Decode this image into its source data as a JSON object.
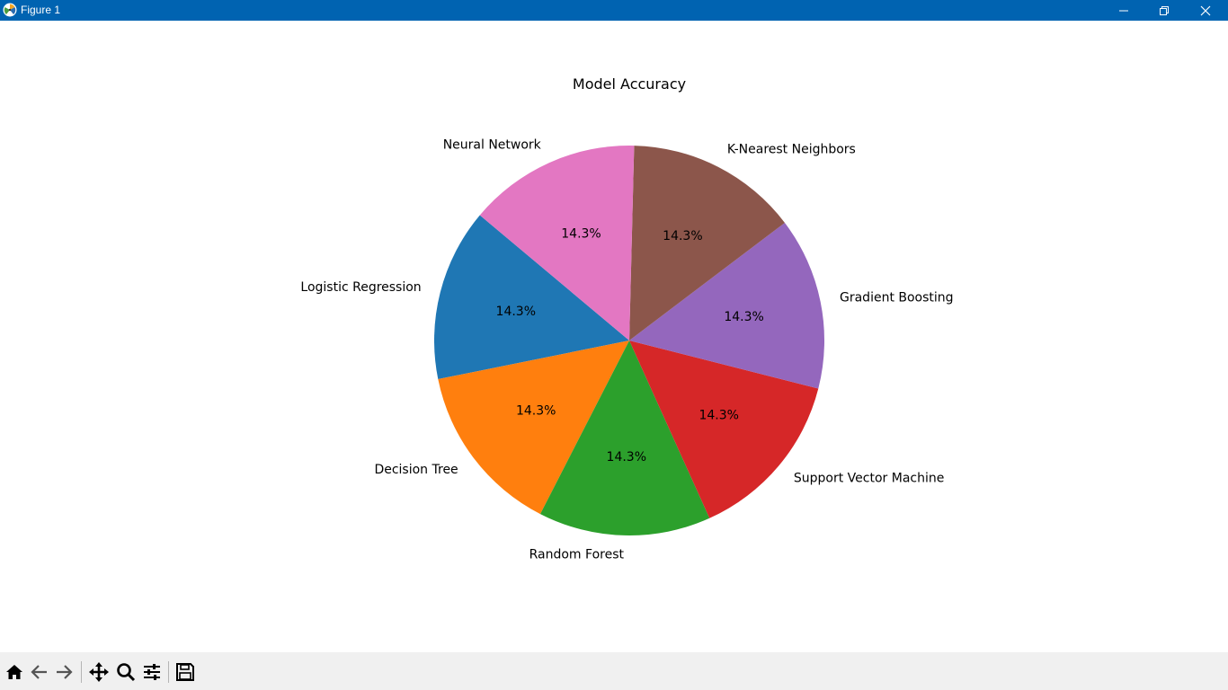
{
  "window": {
    "title": "Figure 1",
    "titlebar_color": "#0063b1"
  },
  "window_controls": [
    {
      "name": "minimize-button",
      "icon": "minimize-icon"
    },
    {
      "name": "restore-button",
      "icon": "restore-icon"
    },
    {
      "name": "close-button",
      "icon": "close-icon"
    }
  ],
  "toolbar": {
    "tools": [
      {
        "name": "home-button",
        "icon": "home-icon"
      },
      {
        "name": "back-button",
        "icon": "back-arrow-icon"
      },
      {
        "name": "forward-button",
        "icon": "forward-arrow-icon"
      },
      {
        "name": "pan-button",
        "icon": "move-icon"
      },
      {
        "name": "zoom-button",
        "icon": "magnifier-icon"
      },
      {
        "name": "configure-subplots-button",
        "icon": "sliders-icon"
      },
      {
        "name": "save-button",
        "icon": "floppy-disk-icon"
      }
    ]
  },
  "chart_data": {
    "type": "pie",
    "title": "Model Accuracy",
    "categories": [
      "Logistic Regression",
      "Decision Tree",
      "Random Forest",
      "Support Vector Machine",
      "Gradient Boosting",
      "K-Nearest Neighbors",
      "Neural Network"
    ],
    "values": [
      1,
      1,
      1,
      1,
      1,
      1,
      1
    ],
    "autopct_labels": [
      "14.3%",
      "14.3%",
      "14.3%",
      "14.3%",
      "14.3%",
      "14.3%",
      "14.3%"
    ],
    "colors": [
      "#1f77b4",
      "#ff7f0e",
      "#2ca02c",
      "#d62728",
      "#9467bd",
      "#8c564b",
      "#e377c2"
    ],
    "start_angle_deg": 140,
    "counterclockwise": true
  }
}
